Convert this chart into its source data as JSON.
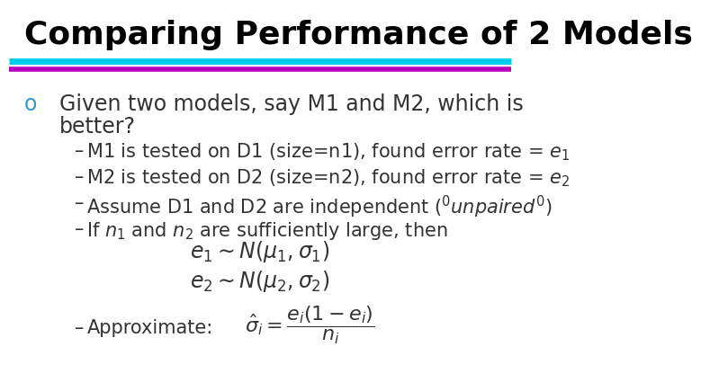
{
  "title": "Comparing Performance of 2 Models",
  "title_color": "#000000",
  "title_fontsize": 26,
  "bg_color": "#ffffff",
  "line1_color": "#00CCEE",
  "line2_color": "#BB00BB",
  "bullet_color": "#3399CC",
  "text_color": "#333333",
  "sub_color": "#333333",
  "font_main": 17,
  "font_sub": 15,
  "font_formula": 16
}
